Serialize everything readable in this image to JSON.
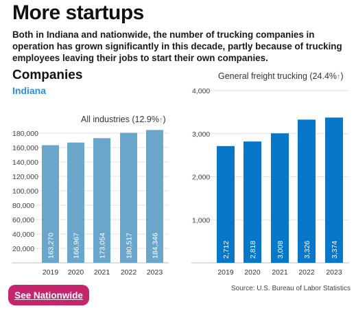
{
  "headline": "More startups",
  "deck": "Both in Indiana and nationwide, the number of trucking companies in operation has grown significantly in this decade, partly because of trucking employees leaving their jobs to start their own companies.",
  "section_title": "Companies",
  "region_label": "Indiana",
  "source": "Source: U.S. Bureau of Labor Statistics",
  "nav_button_label": "See Nationwide",
  "colors": {
    "left_bar": "#6aa6cc",
    "right_bar": "#0877c9",
    "button": "#c4256d",
    "region": "#2b8ed6",
    "arrow": "#4caf50"
  },
  "chart_data": [
    {
      "type": "bar",
      "title_text": "All industries (12.9%",
      "title_arrow": "↑",
      "title_close": ")",
      "categories": [
        "2019",
        "2020",
        "2021",
        "2022",
        "2023"
      ],
      "values": [
        163270,
        166967,
        173054,
        180517,
        184346
      ],
      "value_labels": [
        "163,270",
        "166,967",
        "173,054",
        "180,517",
        "184,346"
      ],
      "yticks": [
        "20,000",
        "40,000",
        "60,000",
        "80,000",
        "100,000",
        "120,000",
        "140,000",
        "160,000",
        "180,000"
      ],
      "ytick_values": [
        20000,
        40000,
        60000,
        80000,
        100000,
        120000,
        140000,
        160000,
        180000
      ],
      "ylim": [
        0,
        190000
      ],
      "grid": true
    },
    {
      "type": "bar",
      "title_text": "General freight trucking (24.4%",
      "title_arrow": "↑",
      "title_close": ")",
      "categories": [
        "2019",
        "2020",
        "2021",
        "2022",
        "2023"
      ],
      "values": [
        2712,
        2818,
        3008,
        3326,
        3374
      ],
      "value_labels": [
        "2,712",
        "2,818",
        "3,008",
        "3,326",
        "3,374"
      ],
      "yticks": [
        "1,000",
        "2,000",
        "3,000",
        "4,000"
      ],
      "ytick_values": [
        1000,
        2000,
        3000,
        4000
      ],
      "ylim": [
        0,
        4000
      ],
      "grid": true
    }
  ]
}
